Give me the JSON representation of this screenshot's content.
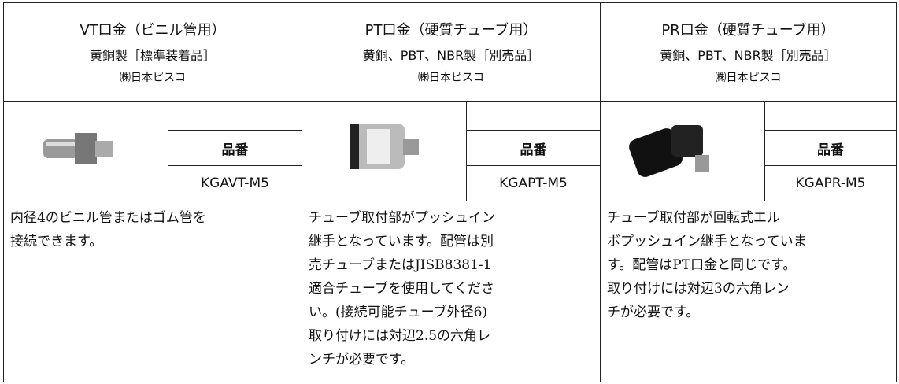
{
  "columns": [
    {
      "title": "VT口金（ビニル管用）",
      "material": "黄銅製［標準装着品］",
      "maker": "㈱日本ピスコ",
      "part_label": "品番",
      "part_number": "KGAVT-M5",
      "description": [
        "内径4のビニル管またはゴム管を",
        "接続できます。"
      ]
    },
    {
      "title": "PT口金（硬質チューブ用）",
      "material": "黄銅、PBT、NBR製［別売品］",
      "maker": "㈱日本ピスコ",
      "part_label": "品番",
      "part_number": "KGAPT-M5",
      "description": [
        "チューブ取付部がプッシュイン",
        "継手となっています。配管は別",
        "売チューブまたはJISB8381-1",
        "適合チューブを使用してくださ",
        "い。(接続可能チューブ外径6)",
        "取り付けには対辺2.5の六角レ",
        "ンチが必要です。"
      ]
    },
    {
      "title": "PR口金（硬質チューブ用）",
      "material": "黄銅、PBT、NBR製［別売品］",
      "maker": "㈱日本ピスコ",
      "part_label": "品番",
      "part_number": "KGAPR-M5",
      "description": [
        "チューブ取付部が回転式エル",
        "ボプッシュイン継手となっていま",
        "す。配管はPT口金と同じです。",
        "取り付けには対辺3の六角レン",
        "チが必要です。"
      ]
    }
  ]
}
